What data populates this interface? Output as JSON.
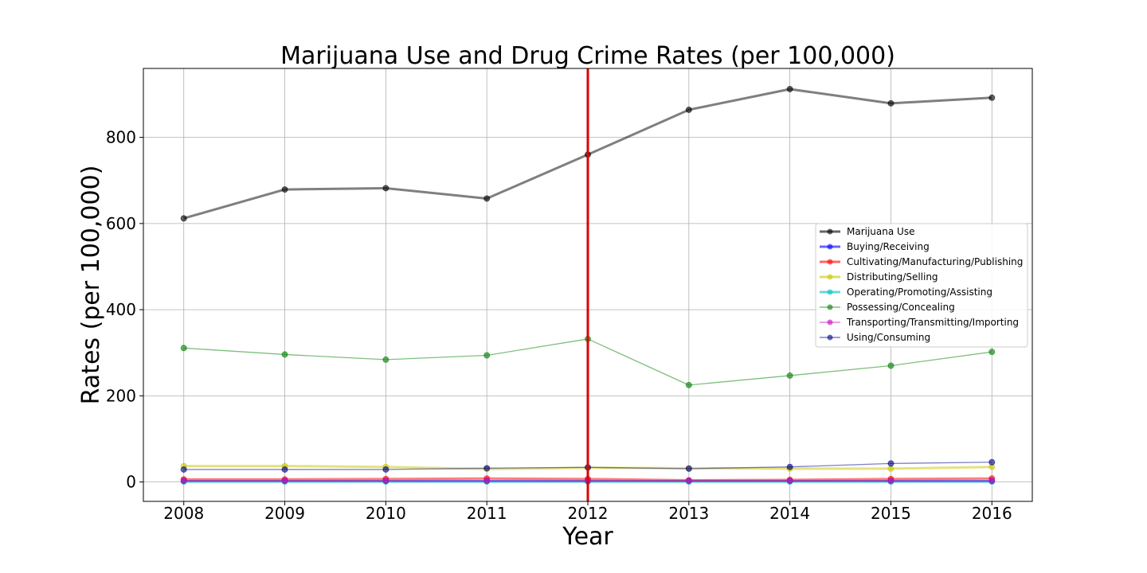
{
  "chart_data": {
    "type": "line",
    "title": "Marijuana Use and Drug Crime Rates (per 100,000)",
    "xlabel": "Year",
    "ylabel": "Rates (per 100,000)",
    "x": [
      2008,
      2009,
      2010,
      2011,
      2012,
      2013,
      2014,
      2015,
      2016
    ],
    "xlim": [
      2007.6,
      2016.4
    ],
    "ylim": [
      -45,
      960
    ],
    "yticks": [
      0,
      200,
      400,
      600,
      800
    ],
    "grid": true,
    "legend_position": "center-right",
    "vertical_marker": {
      "x": 2012,
      "color": "#dd0000"
    },
    "series": [
      {
        "name": "Marijuana Use",
        "color": "#000000",
        "values": [
          612,
          679,
          682,
          658,
          760,
          864,
          912,
          879,
          892
        ]
      },
      {
        "name": "Buying/Receiving",
        "color": "#0000ff",
        "values": [
          2,
          2,
          2,
          2,
          2,
          2,
          2,
          2,
          2
        ]
      },
      {
        "name": "Cultivating/Manufacturing/Publishing",
        "color": "#ff0000",
        "values": [
          6,
          6,
          7,
          8,
          7,
          4,
          5,
          7,
          8
        ]
      },
      {
        "name": "Distributing/Selling",
        "color": "#c8c800",
        "values": [
          37,
          37,
          35,
          30,
          33,
          32,
          31,
          31,
          35
        ]
      },
      {
        "name": "Operating/Promoting/Assisting",
        "color": "#00bfbf",
        "values": [
          1,
          1,
          1,
          1,
          1,
          1,
          1,
          1,
          1
        ]
      },
      {
        "name": "Possessing/Concealing",
        "color": "#008000",
        "values": [
          311,
          296,
          284,
          294,
          332,
          225,
          247,
          270,
          302
        ]
      },
      {
        "name": "Transporting/Transmitting/Importing",
        "color": "#bf00bf",
        "values": [
          3,
          3,
          3,
          3,
          3,
          3,
          3,
          3,
          3
        ]
      },
      {
        "name": "Using/Consuming",
        "color": "#00008b",
        "values": [
          29,
          29,
          29,
          32,
          34,
          31,
          35,
          43,
          46
        ]
      }
    ]
  }
}
